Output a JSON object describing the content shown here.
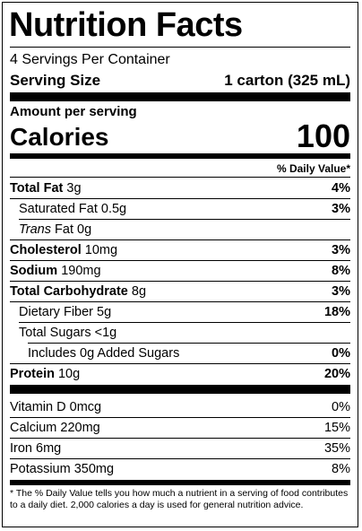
{
  "title": "Nutrition Facts",
  "servings_per_container": "4 Servings Per Container",
  "serving_size": {
    "label": "Serving Size",
    "value": "1 carton (325 mL)"
  },
  "amount_per_serving": "Amount per serving",
  "calories": {
    "label": "Calories",
    "value": "100"
  },
  "daily_value_header": "% Daily Value*",
  "nutrients": [
    {
      "name": "Total Fat",
      "amount": "3g",
      "dv": "4%"
    },
    {
      "name": "Saturated Fat",
      "amount": "0.5g",
      "dv": "3%"
    },
    {
      "name": "Trans",
      "name_suffix": "Fat",
      "amount": "0g",
      "dv": ""
    },
    {
      "name": "Cholesterol",
      "amount": "10mg",
      "dv": "3%"
    },
    {
      "name": "Sodium",
      "amount": "190mg",
      "dv": "8%"
    },
    {
      "name": "Total Carbohydrate",
      "amount": "8g",
      "dv": "3%"
    },
    {
      "name": "Dietary Fiber",
      "amount": "5g",
      "dv": "18%"
    },
    {
      "name": "Total Sugars",
      "amount": "<1g",
      "dv": ""
    },
    {
      "name": "Includes",
      "amount": "0g",
      "name_suffix": "Added Sugars",
      "dv": "0%"
    },
    {
      "name": "Protein",
      "amount": "10g",
      "dv": "20%"
    }
  ],
  "vitamins": [
    {
      "name": "Vitamin D",
      "amount": "0mcg",
      "dv": "0%"
    },
    {
      "name": "Calcium",
      "amount": "220mg",
      "dv": "15%"
    },
    {
      "name": "Iron",
      "amount": "6mg",
      "dv": "35%"
    },
    {
      "name": "Potassium",
      "amount": "350mg",
      "dv": "8%"
    }
  ],
  "footnote": "* The % Daily Value tells you how much a nutrient in a serving of food contributes to a daily diet. 2,000 calories a day is used for general nutrition advice."
}
